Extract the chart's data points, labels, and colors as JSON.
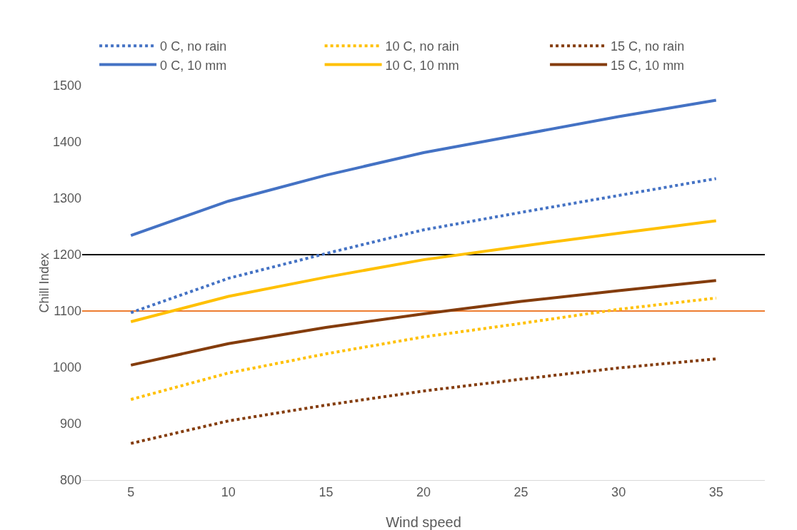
{
  "chart_data": {
    "type": "line",
    "xlabel": "Wind speed",
    "ylabel": "Chill Index",
    "categories": [
      "5",
      "10",
      "15",
      "20",
      "25",
      "30",
      "35"
    ],
    "series": [
      {
        "name": "0 C, no rain",
        "color": "#4472c4",
        "line_style": "dotted",
        "values": [
          1097,
          1158,
          1202,
          1244,
          1275,
          1305,
          1335
        ]
      },
      {
        "name": "10 C, no rain",
        "color": "#ffc000",
        "line_style": "dotted",
        "values": [
          943,
          990,
          1024,
          1054,
          1078,
          1103,
          1123
        ]
      },
      {
        "name": "15 C, no rain",
        "color": "#843c0c",
        "line_style": "dotted",
        "values": [
          865,
          905,
          933,
          958,
          979,
          999,
          1015
        ]
      },
      {
        "name": "0 C, 10 mm",
        "color": "#4472c4",
        "line_style": "solid",
        "values": [
          1234,
          1295,
          1341,
          1381,
          1413,
          1445,
          1474
        ]
      },
      {
        "name": "10 C, 10 mm",
        "color": "#ffc000",
        "line_style": "solid",
        "values": [
          1081,
          1126,
          1160,
          1191,
          1215,
          1238,
          1260
        ]
      },
      {
        "name": "15 C, 10 mm",
        "color": "#843c0c",
        "line_style": "solid",
        "values": [
          1004,
          1042,
          1071,
          1095,
          1117,
          1136,
          1154
        ]
      }
    ],
    "ylim": [
      800,
      1500
    ],
    "yticks": [
      800,
      900,
      1000,
      1100,
      1200,
      1300,
      1400,
      1500
    ],
    "ref_lines": [
      {
        "axis": "y",
        "value": 1200,
        "color": "#000000"
      },
      {
        "axis": "y",
        "value": 1100,
        "color": "#ed7d31"
      }
    ],
    "grid": false,
    "legend": "top",
    "marker": "none"
  }
}
